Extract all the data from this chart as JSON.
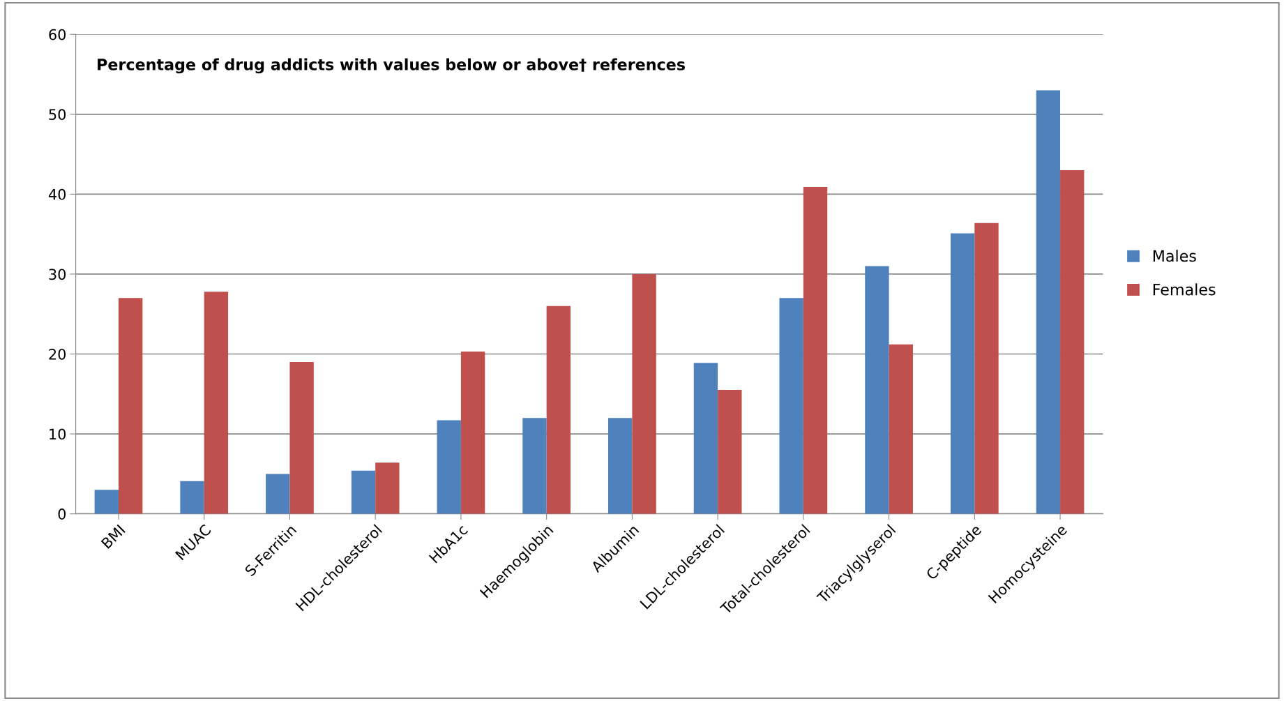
{
  "chart_data": {
    "type": "bar",
    "title": "Percentage of drug addicts with values below or above† references",
    "categories": [
      "BMI",
      "MUAC",
      "S-Ferritin",
      "HDL-cholesterol",
      "HbA1c",
      "Haemoglobin",
      "Albumin",
      "LDL-cholesterol",
      "Total-cholesterol",
      "Triacylglyserol",
      "C-peptide",
      "Homocysteine"
    ],
    "series": [
      {
        "name": "Males",
        "color": "#4f81bd",
        "values": [
          3,
          4.1,
          5,
          5.4,
          11.7,
          12,
          12,
          18.9,
          27,
          31,
          35.1,
          53
        ]
      },
      {
        "name": "Females",
        "color": "#c0504d",
        "values": [
          27,
          27.8,
          19,
          6.4,
          20.3,
          26,
          30,
          15.5,
          40.9,
          21.2,
          36.4,
          43
        ]
      }
    ],
    "ylim": [
      0,
      60
    ],
    "yticks": [
      0,
      10,
      20,
      30,
      40,
      50,
      60
    ],
    "grid": "y",
    "legend": "right"
  }
}
